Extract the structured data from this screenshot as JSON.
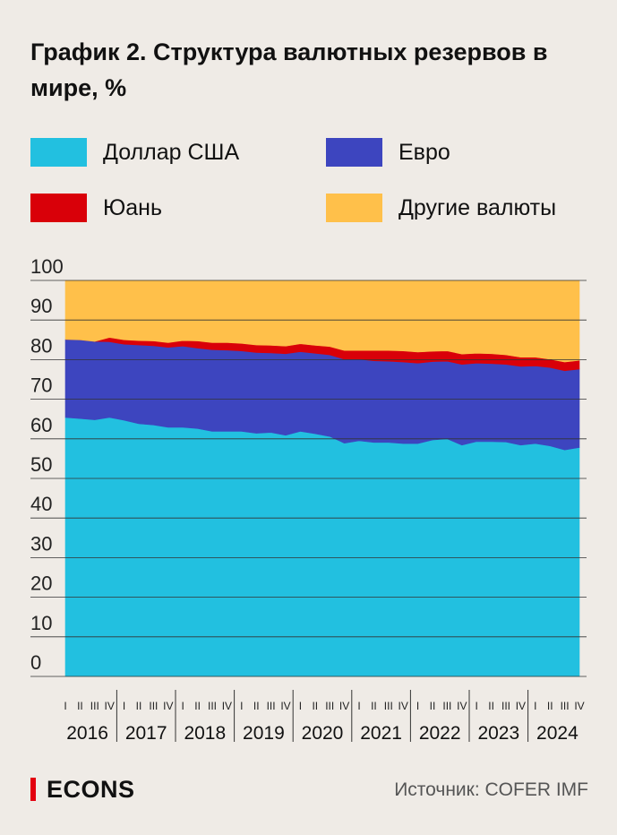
{
  "title": "График 2. Структура валютных резервов в мире, %",
  "legend": [
    {
      "label": "Доллар США",
      "color": "#22c0e0"
    },
    {
      "label": "Евро",
      "color": "#3d45bf"
    },
    {
      "label": "Юань",
      "color": "#d90009"
    },
    {
      "label": "Другие валюты",
      "color": "#ffc04a"
    }
  ],
  "source": "Источник: COFER IMF",
  "brand": "ECONS",
  "chart_data": {
    "type": "area",
    "stacked": true,
    "ylim": [
      0,
      100
    ],
    "yticks": [
      "0",
      "10",
      "20",
      "30",
      "40",
      "50",
      "60",
      "70",
      "80",
      "90",
      "100"
    ],
    "quarter_labels": [
      "I",
      "II",
      "III",
      "IV"
    ],
    "years": [
      "2016",
      "2017",
      "2018",
      "2019",
      "2020",
      "2021",
      "2022",
      "2023",
      "2024"
    ],
    "x": [
      "2016 I",
      "2016 II",
      "2016 III",
      "2016 IV",
      "2017 I",
      "2017 II",
      "2017 III",
      "2017 IV",
      "2018 I",
      "2018 II",
      "2018 III",
      "2018 IV",
      "2019 I",
      "2019 II",
      "2019 III",
      "2019 IV",
      "2020 I",
      "2020 II",
      "2020 III",
      "2020 IV",
      "2021 I",
      "2021 II",
      "2021 III",
      "2021 IV",
      "2022 I",
      "2022 II",
      "2022 III",
      "2022 IV",
      "2023 I",
      "2023 II",
      "2023 III",
      "2023 IV",
      "2024 I",
      "2024 II",
      "2024 III",
      "2024 IV"
    ],
    "series": [
      {
        "name": "Доллар США",
        "color": "#22c0e0",
        "values": [
          65.4,
          65.1,
          64.8,
          65.4,
          64.7,
          63.8,
          63.5,
          62.9,
          62.9,
          62.6,
          61.9,
          61.9,
          61.9,
          61.4,
          61.6,
          60.9,
          61.9,
          61.3,
          60.6,
          58.9,
          59.5,
          59.1,
          59.1,
          58.8,
          58.8,
          59.7,
          60.0,
          58.4,
          59.3,
          59.3,
          59.2,
          58.4,
          58.8,
          58.2,
          57.2,
          57.8
        ]
      },
      {
        "name": "Евро",
        "color": "#3d45bf",
        "values": [
          19.7,
          19.9,
          19.8,
          19.1,
          19.2,
          19.9,
          20.0,
          20.2,
          20.5,
          20.3,
          20.6,
          20.5,
          20.3,
          20.4,
          20.1,
          20.6,
          20.1,
          20.3,
          20.6,
          21.2,
          20.6,
          20.6,
          20.5,
          20.6,
          20.3,
          19.8,
          19.6,
          20.4,
          19.8,
          19.7,
          19.6,
          19.9,
          19.6,
          19.8,
          20.0,
          19.8
        ]
      },
      {
        "name": "Юань",
        "color": "#d90009",
        "values": [
          0.0,
          0.0,
          0.0,
          1.1,
          1.1,
          1.1,
          1.2,
          1.2,
          1.4,
          1.8,
          1.8,
          1.9,
          1.9,
          1.9,
          1.9,
          1.9,
          2.0,
          2.0,
          2.1,
          2.2,
          2.2,
          2.6,
          2.7,
          2.8,
          2.8,
          2.6,
          2.6,
          2.6,
          2.5,
          2.5,
          2.4,
          2.3,
          2.2,
          2.1,
          2.2,
          2.2
        ]
      },
      {
        "name": "Другие валюты",
        "color": "#ffc04a",
        "values": [
          14.9,
          15.0,
          15.4,
          14.4,
          15.0,
          15.2,
          15.3,
          15.7,
          15.2,
          15.3,
          15.7,
          15.7,
          15.9,
          16.3,
          16.4,
          16.6,
          16.0,
          16.4,
          16.7,
          17.7,
          17.7,
          17.7,
          17.7,
          17.8,
          18.1,
          17.9,
          17.8,
          18.6,
          18.4,
          18.5,
          18.8,
          19.4,
          19.4,
          19.9,
          20.6,
          20.2
        ]
      }
    ]
  }
}
